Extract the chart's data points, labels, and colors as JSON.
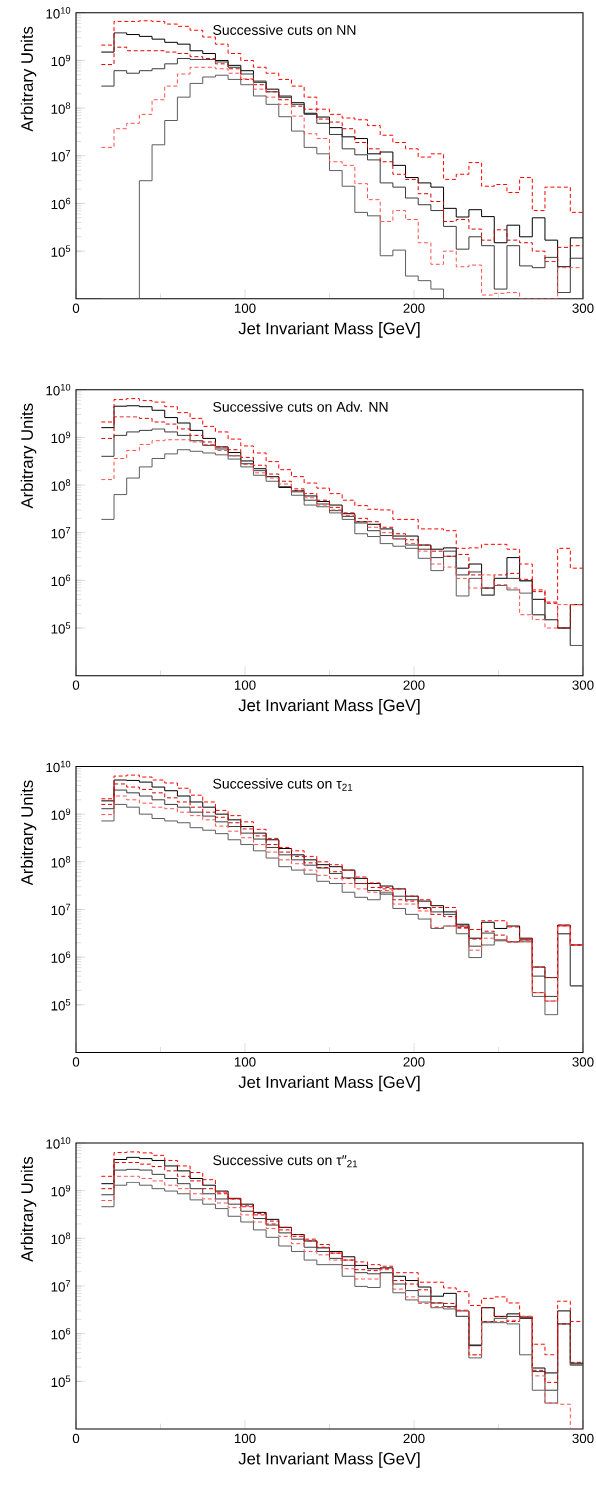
{
  "chart_data": [
    {
      "type": "histogram",
      "title": "Successive cuts on NN",
      "xlabel": "Jet Invariant Mass [GeV]",
      "ylabel": "Arbitrary Units",
      "log": "y",
      "xlim": [
        0,
        300
      ],
      "ylim": [
        10000,
        10000000000
      ],
      "xticks": [
        0,
        100,
        200,
        300
      ],
      "yticks": [
        {
          "value": 100000,
          "label": "10$^{5}$"
        },
        {
          "value": 1000000,
          "label": "10$^{6}$"
        },
        {
          "value": 10000000,
          "label": "10$^{7}$"
        },
        {
          "value": 100000000,
          "label": "10$^{8}$"
        },
        {
          "value": 1000000000,
          "label": "10$^{9}$"
        },
        {
          "value": 10000000000,
          "label": "10$^{10}$"
        }
      ],
      "bins": [
        15,
        22.5,
        30,
        37.5,
        45,
        52.5,
        60,
        67.5,
        75,
        82.5,
        90,
        97.5,
        105,
        112.5,
        120,
        127.5,
        135,
        142.5,
        150,
        157.5,
        165,
        172.5,
        180,
        187.5,
        195,
        202.5,
        210,
        217.5,
        225,
        232.5,
        240,
        247.5,
        255,
        262.5,
        270,
        277.5,
        285,
        292.5,
        300
      ],
      "series": [
        {
          "color": "#000000",
          "line_style": "solid",
          "values": [
            1500000000.0,
            3800000000.0,
            3500000000.0,
            3200000000.0,
            2800000000.0,
            2400000000.0,
            2200000000.0,
            1600000000.0,
            1400000000.0,
            1000000000.0,
            790000000.0,
            610000000.0,
            350000000.0,
            250000000.0,
            170000000.0,
            130000000.0,
            78000000.0,
            65000000.0,
            39000000.0,
            25000000.0,
            23000000.0,
            11000000.0,
            12000000.0,
            6300000.0,
            3500000.0,
            2700000.0,
            2200000.0,
            790000.0,
            520000.0,
            740000.0,
            530000.0,
            150000.0,
            350000.0,
            200000.0,
            500000.0,
            170000.0,
            47000.0,
            190000.0
          ]
        },
        {
          "color": "#3a3a3a",
          "line_style": "solid",
          "values": [
            290000000.0,
            610000000.0,
            540000000.0,
            610000000.0,
            670000000.0,
            850000000.0,
            1100000000.0,
            1050000000.0,
            1050000000.0,
            930000000.0,
            720000000.0,
            520000000.0,
            370000000.0,
            220000000.0,
            180000000.0,
            120000000.0,
            74000000.0,
            48000000.0,
            28000000.0,
            14000000.0,
            10500000.0,
            8200000.0,
            2700000.0,
            2200000.0,
            1300000.0,
            940000.0,
            710000.0,
            330000.0,
            110000.0,
            200000.0,
            130000.0,
            16000.0,
            130000.0,
            49000.0,
            45000.0,
            74000.0,
            13500.0,
            71000.0
          ]
        },
        {
          "color": "#5c5c5c",
          "line_style": "solid",
          "values": [
            null,
            null,
            null,
            3000000.0,
            17000000.0,
            55000000.0,
            170000000.0,
            330000000.0,
            450000000.0,
            490000000.0,
            400000000.0,
            310000000.0,
            180000000.0,
            120000000.0,
            66000000.0,
            33000000.0,
            15000000.0,
            11000000.0,
            4900000.0,
            2300000.0,
            650000.0,
            550000.0,
            80000.0,
            105000.0,
            30000.0,
            24000.0,
            16000.0,
            null,
            null,
            null,
            null,
            null,
            null,
            null,
            null,
            null,
            null,
            null
          ]
        },
        {
          "color": "#ff0000",
          "line_style": "dashed",
          "values": [
            2100000000.0,
            6600000000.0,
            6600000000.0,
            6800000000.0,
            6600000000.0,
            5800000000.0,
            5200000000.0,
            4300000000.0,
            3100000000.0,
            2200000000.0,
            1400000000.0,
            1000000000.0,
            720000000.0,
            540000000.0,
            400000000.0,
            290000000.0,
            170000000.0,
            95000000.0,
            74000000.0,
            62000000.0,
            57000000.0,
            43000000.0,
            27000000.0,
            19000000.0,
            14000000.0,
            9400000.0,
            11000000.0,
            3200000.0,
            4100000.0,
            7200000.0,
            2300000.0,
            2500000.0,
            1700000.0,
            3500000.0,
            710000.0,
            2200000.0,
            2200000.0,
            650000.0
          ]
        },
        {
          "color": "#d80000",
          "line_style": "dashed",
          "values": [
            820000000.0,
            1900000000.0,
            1600000000.0,
            1600000000.0,
            1600000000.0,
            1500000000.0,
            1400000000.0,
            1200000000.0,
            1100000000.0,
            850000000.0,
            670000000.0,
            400000000.0,
            310000000.0,
            220000000.0,
            150000000.0,
            110000000.0,
            95000000.0,
            59000000.0,
            51000000.0,
            37000000.0,
            19000000.0,
            14000000.0,
            7500000.0,
            4100000.0,
            3200000.0,
            1600000.0,
            1100000.0,
            420000.0,
            460000.0,
            290000.0,
            170000.0,
            280000.0,
            170000.0,
            150000.0,
            100000.0,
            60000.0,
            120000.0,
            130000.0
          ]
        },
        {
          "color": "#ff5050",
          "line_style": "dashed",
          "values": [
            15000000.0,
            37000000.0,
            48000000.0,
            74000000.0,
            150000000.0,
            290000000.0,
            520000000.0,
            720000000.0,
            720000000.0,
            670000000.0,
            540000000.0,
            410000000.0,
            250000000.0,
            170000000.0,
            120000000.0,
            68000000.0,
            29000000.0,
            23000000.0,
            7500000.0,
            6300000.0,
            2600000.0,
            1200000.0,
            420000.0,
            710000.0,
            460000.0,
            150000.0,
            53000.0,
            100000.0,
            47000.0,
            51000.0,
            12000.0,
            13000.0,
            13500.0,
            null,
            null,
            null,
            45000.0,
            45000.0
          ]
        }
      ]
    },
    {
      "type": "histogram",
      "title": "Successive cuts on Adv. NN",
      "xlabel": "Jet Invariant Mass [GeV]",
      "ylabel": "Arbitrary Units",
      "log": "y",
      "xlim": [
        0,
        300
      ],
      "ylim": [
        10000,
        10000000000
      ],
      "xticks": [
        0,
        100,
        200,
        300
      ],
      "yticks": [
        {
          "value": 100000,
          "label": "10$^{5}$"
        },
        {
          "value": 1000000,
          "label": "10$^{6}$"
        },
        {
          "value": 10000000,
          "label": "10$^{7}$"
        },
        {
          "value": 100000000,
          "label": "10$^{8}$"
        },
        {
          "value": 1000000000,
          "label": "10$^{9}$"
        },
        {
          "value": 10000000000,
          "label": "10$^{10}$"
        }
      ],
      "bins": [
        15,
        22.5,
        30,
        37.5,
        45,
        52.5,
        60,
        67.5,
        75,
        82.5,
        90,
        97.5,
        105,
        112.5,
        120,
        127.5,
        135,
        142.5,
        150,
        157.5,
        165,
        172.5,
        180,
        187.5,
        195,
        202.5,
        210,
        217.5,
        225,
        232.5,
        240,
        247.5,
        255,
        262.5,
        270,
        277.5,
        285,
        292.5,
        300
      ],
      "series": [
        {
          "color": "#000000",
          "line_style": "solid",
          "values": [
            1600000000.0,
            4500000000.0,
            4600000000.0,
            4400000000.0,
            3700000000.0,
            2600000000.0,
            2000000000.0,
            1400000000.0,
            950000000.0,
            630000000.0,
            480000000.0,
            320000000.0,
            220000000.0,
            150000000.0,
            89000000.0,
            76000000.0,
            59000000.0,
            45000000.0,
            38000000.0,
            25000000.0,
            17000000.0,
            15000000.0,
            12000000.0,
            8500000.0,
            8500000.0,
            5500000.0,
            4500000.0,
            4800000.0,
            1800000.0,
            2200000.0,
            690000.0,
            1100000.0,
            3000000.0,
            980000.0,
            400000.0,
            150000.0,
            100000.0,
            310000.0
          ]
        },
        {
          "color": "#3a3a3a",
          "line_style": "solid",
          "values": [
            400000000.0,
            1100000000.0,
            1300000000.0,
            1400000000.0,
            1500000000.0,
            1300000000.0,
            1100000000.0,
            850000000.0,
            680000000.0,
            570000000.0,
            410000000.0,
            280000000.0,
            200000000.0,
            150000000.0,
            93000000.0,
            72000000.0,
            48000000.0,
            40000000.0,
            29000000.0,
            22000000.0,
            16000000.0,
            11000000.0,
            8700000.0,
            7400000.0,
            5500000.0,
            4500000.0,
            3000000.0,
            4100000.0,
            1300000.0,
            1500000.0,
            490000.0,
            1100000.0,
            1100000.0,
            980000.0,
            190000.0,
            150000.0,
            100000.0,
            43000.0
          ]
        },
        {
          "color": "#5c5c5c",
          "line_style": "solid",
          "values": [
            19000000.0,
            63000000.0,
            140000000.0,
            240000000.0,
            360000000.0,
            450000000.0,
            550000000.0,
            510000000.0,
            470000000.0,
            430000000.0,
            350000000.0,
            240000000.0,
            160000000.0,
            120000000.0,
            93000000.0,
            61000000.0,
            38000000.0,
            35000000.0,
            26000000.0,
            19000000.0,
            9500000.0,
            8300000.0,
            5900000.0,
            5200000.0,
            4700000.0,
            2900000.0,
            1600000.0,
            3200000.0,
            470000.0,
            1100000.0,
            490000.0,
            780000.0,
            630000.0,
            540000.0,
            190000.0,
            150000.0,
            100000.0,
            43000.0
          ]
        },
        {
          "color": "#ff0000",
          "line_style": "dashed",
          "values": [
            2100000000.0,
            6200000000.0,
            6500000000.0,
            5900000000.0,
            5500000000.0,
            4400000000.0,
            3300000000.0,
            2500000000.0,
            1700000000.0,
            1300000000.0,
            920000000.0,
            660000000.0,
            470000000.0,
            310000000.0,
            210000000.0,
            150000000.0,
            110000000.0,
            86000000.0,
            66000000.0,
            48000000.0,
            37000000.0,
            31000000.0,
            30000000.0,
            19000000.0,
            19000000.0,
            12000000.0,
            12000000.0,
            11000000.0,
            4700000.0,
            4800000.0,
            5700000.0,
            5700000.0,
            4500000.0,
            2200000.0,
            630000.0,
            350000.0,
            4700000.0,
            1800000.0
          ]
        },
        {
          "color": "#d80000",
          "line_style": "dashed",
          "values": [
            950000000.0,
            2700000000.0,
            2700000000.0,
            2500000000.0,
            2100000000.0,
            1900000000.0,
            1500000000.0,
            1100000000.0,
            800000000.0,
            630000000.0,
            550000000.0,
            380000000.0,
            260000000.0,
            170000000.0,
            120000000.0,
            83000000.0,
            66000000.0,
            48000000.0,
            34000000.0,
            26000000.0,
            20000000.0,
            17000000.0,
            13000000.0,
            9500000.0,
            7100000.0,
            5500000.0,
            4100000.0,
            3200000.0,
            3500000.0,
            1300000.0,
            690000.0,
            1300000.0,
            1400000.0,
            1050000.0,
            580000.0,
            330000.0,
            100000.0,
            310000.0
          ]
        },
        {
          "color": "#ff5050",
          "line_style": "dashed",
          "values": [
            130000000.0,
            360000000.0,
            530000000.0,
            710000000.0,
            850000000.0,
            890000000.0,
            890000000.0,
            800000000.0,
            710000000.0,
            530000000.0,
            410000000.0,
            270000000.0,
            180000000.0,
            140000000.0,
            105000000.0,
            76000000.0,
            54000000.0,
            38000000.0,
            30000000.0,
            23000000.0,
            17000000.0,
            13000000.0,
            10000000.0,
            7400000.0,
            5900000.0,
            4100000.0,
            2200000.0,
            1900000.0,
            1100000.0,
            690000.0,
            1300000.0,
            810000.0,
            690000.0,
            190000.0,
            150000.0,
            100000.0,
            310000.0,
            310000.0
          ]
        }
      ]
    },
    {
      "type": "histogram",
      "title": "Successive cuts on τ$_{21}$",
      "xlabel": "Jet Invariant Mass [GeV]",
      "ylabel": "Arbitrary Units",
      "log": "y",
      "xlim": [
        0,
        300
      ],
      "ylim": [
        10000,
        10000000000
      ],
      "xticks": [
        0,
        100,
        200,
        300
      ],
      "yticks": [
        {
          "value": 100000,
          "label": "10$^{5}$"
        },
        {
          "value": 1000000,
          "label": "10$^{6}$"
        },
        {
          "value": 10000000,
          "label": "10$^{7}$"
        },
        {
          "value": 100000000,
          "label": "10$^{8}$"
        },
        {
          "value": 1000000000,
          "label": "10$^{9}$"
        },
        {
          "value": 10000000000,
          "label": "10$^{10}$"
        }
      ],
      "bins": [
        15,
        22.5,
        30,
        37.5,
        45,
        52.5,
        60,
        67.5,
        75,
        82.5,
        90,
        97.5,
        105,
        112.5,
        120,
        127.5,
        135,
        142.5,
        150,
        157.5,
        165,
        172.5,
        180,
        187.5,
        195,
        202.5,
        210,
        217.5,
        225,
        232.5,
        240,
        247.5,
        255,
        262.5,
        270,
        277.5,
        285,
        292.5,
        300
      ],
      "series": [
        {
          "color": "#000000",
          "line_style": "solid",
          "values": [
            1900000000.0,
            5200000000.0,
            5100000000.0,
            4700000000.0,
            3700000000.0,
            3100000000.0,
            2400000000.0,
            1800000000.0,
            1400000000.0,
            1000000000.0,
            760000000.0,
            550000000.0,
            400000000.0,
            290000000.0,
            190000000.0,
            140000000.0,
            110000000.0,
            87000000.0,
            79000000.0,
            67000000.0,
            45000000.0,
            35000000.0,
            31000000.0,
            27000000.0,
            19000000.0,
            15000000.0,
            12000000.0,
            8900000.0,
            4900000.0,
            2500000.0,
            5400000.0,
            4000000.0,
            4500000.0,
            2500000.0,
            620000.0,
            370000.0,
            4700000.0,
            1800000.0
          ]
        },
        {
          "color": "#3a3a3a",
          "line_style": "solid",
          "values": [
            1300000000.0,
            3200000000.0,
            2800000000.0,
            2400000000.0,
            2000000000.0,
            1600000000.0,
            1400000000.0,
            1100000000.0,
            910000000.0,
            690000000.0,
            550000000.0,
            400000000.0,
            300000000.0,
            200000000.0,
            140000000.0,
            110000000.0,
            85000000.0,
            74000000.0,
            57000000.0,
            46000000.0,
            35000000.0,
            25000000.0,
            21000000.0,
            19000000.0,
            16000000.0,
            11000000.0,
            8900000.0,
            7900000.0,
            4500000.0,
            1700000.0,
            3200000.0,
            2300000.0,
            2100000.0,
            2300000.0,
            400000.0,
            150000.0,
            3100000.0,
            250000.0
          ]
        },
        {
          "color": "#5c5c5c",
          "line_style": "solid",
          "values": [
            720000000.0,
            1600000000.0,
            1400000000.0,
            1000000000.0,
            810000000.0,
            720000000.0,
            660000000.0,
            520000000.0,
            460000000.0,
            390000000.0,
            290000000.0,
            230000000.0,
            170000000.0,
            120000000.0,
            79000000.0,
            67000000.0,
            55000000.0,
            39000000.0,
            35000000.0,
            23000000.0,
            18000000.0,
            16000000.0,
            23000000.0,
            10500000.0,
            7900000.0,
            6300000.0,
            4000000.0,
            4500000.0,
            3100000.0,
            980000.0,
            1800000.0,
            2200000.0,
            2100000.0,
            2100000.0,
            150000.0,
            62000.0,
            3100000.0,
            250000.0
          ]
        },
        {
          "color": "#ff0000",
          "line_style": "dashed",
          "values": [
            2100000000.0,
            6300000000.0,
            6600000000.0,
            6000000000.0,
            5200000000.0,
            4500000000.0,
            3500000000.0,
            2500000000.0,
            1800000000.0,
            1200000000.0,
            930000000.0,
            690000000.0,
            480000000.0,
            310000000.0,
            200000000.0,
            170000000.0,
            130000000.0,
            100000000.0,
            87000000.0,
            67000000.0,
            48000000.0,
            36000000.0,
            29000000.0,
            27000000.0,
            19000000.0,
            16000000.0,
            11000000.0,
            11000000.0,
            4500000.0,
            3800000.0,
            5800000.0,
            5800000.0,
            4300000.0,
            2400000.0,
            620000.0,
            370000.0,
            4700000.0,
            1800000.0
          ]
        },
        {
          "color": "#d80000",
          "line_style": "dashed",
          "values": [
            1600000000.0,
            4300000000.0,
            3700000000.0,
            3300000000.0,
            2800000000.0,
            2200000000.0,
            1800000000.0,
            1400000000.0,
            1100000000.0,
            860000000.0,
            660000000.0,
            490000000.0,
            350000000.0,
            230000000.0,
            160000000.0,
            130000000.0,
            95000000.0,
            76000000.0,
            62000000.0,
            45000000.0,
            35000000.0,
            29000000.0,
            27000000.0,
            16000000.0,
            15000000.0,
            10500000.0,
            7900000.0,
            7100000.0,
            4200000.0,
            2400000.0,
            3500000.0,
            2900000.0,
            2100000.0,
            2300000.0,
            180000.0,
            120000.0,
            4500000.0,
            1800000.0
          ]
        },
        {
          "color": "#ff5050",
          "line_style": "dashed",
          "values": [
            980000000.0,
            2400000000.0,
            2000000000.0,
            1700000000.0,
            1400000000.0,
            1300000000.0,
            1100000000.0,
            930000000.0,
            760000000.0,
            560000000.0,
            440000000.0,
            320000000.0,
            230000000.0,
            160000000.0,
            110000000.0,
            91000000.0,
            67000000.0,
            52000000.0,
            45000000.0,
            35000000.0,
            27000000.0,
            23000000.0,
            25000000.0,
            13000000.0,
            13000000.0,
            9300000.0,
            4200000.0,
            4500000.0,
            4000000.0,
            1400000.0,
            2500000.0,
            2300000.0,
            2100000.0,
            2100000.0,
            180000.0,
            120000.0,
            4500000.0,
            1800000.0
          ]
        }
      ]
    },
    {
      "type": "histogram",
      "title": "Successive cuts on τ″$_{21}$",
      "xlabel": "Jet Invariant Mass [GeV]",
      "ylabel": "Arbitrary Units",
      "log": "y",
      "xlim": [
        0,
        300
      ],
      "ylim": [
        10000,
        10000000000
      ],
      "xticks": [
        0,
        100,
        200,
        300
      ],
      "yticks": [
        {
          "value": 100000,
          "label": "10$^{5}$"
        },
        {
          "value": 1000000,
          "label": "10$^{6}$"
        },
        {
          "value": 10000000,
          "label": "10$^{7}$"
        },
        {
          "value": 100000000,
          "label": "10$^{8}$"
        },
        {
          "value": 1000000000,
          "label": "10$^{9}$"
        },
        {
          "value": 10000000000,
          "label": "10$^{10}$"
        }
      ],
      "bins": [
        15,
        22.5,
        30,
        37.5,
        45,
        52.5,
        60,
        67.5,
        75,
        82.5,
        90,
        97.5,
        105,
        112.5,
        120,
        127.5,
        135,
        142.5,
        150,
        157.5,
        165,
        172.5,
        180,
        187.5,
        195,
        202.5,
        210,
        217.5,
        225,
        232.5,
        240,
        247.5,
        255,
        262.5,
        270,
        277.5,
        285,
        292.5,
        300
      ],
      "series": [
        {
          "color": "#000000",
          "line_style": "solid",
          "values": [
            1400000000.0,
            4500000000.0,
            5000000000.0,
            4700000000.0,
            4300000000.0,
            3300000000.0,
            2600000000.0,
            1800000000.0,
            1300000000.0,
            980000000.0,
            690000000.0,
            520000000.0,
            350000000.0,
            250000000.0,
            170000000.0,
            120000000.0,
            88000000.0,
            63000000.0,
            53000000.0,
            41000000.0,
            27000000.0,
            23000000.0,
            24000000.0,
            16000000.0,
            13000000.0,
            9500000.0,
            6100000.0,
            7000000.0,
            2300000.0,
            560000.0,
            3500000.0,
            2300000.0,
            2600000.0,
            2100000.0,
            190000.0,
            150000.0,
            3000000.0,
            240000.0
          ]
        },
        {
          "color": "#3a3a3a",
          "line_style": "solid",
          "values": [
            820000000.0,
            2700000000.0,
            2800000000.0,
            2700000000.0,
            2200000000.0,
            1800000000.0,
            1400000000.0,
            1100000000.0,
            860000000.0,
            670000000.0,
            520000000.0,
            370000000.0,
            260000000.0,
            190000000.0,
            130000000.0,
            96000000.0,
            65000000.0,
            53000000.0,
            38000000.0,
            27000000.0,
            19000000.0,
            18000000.0,
            19000000.0,
            11000000.0,
            8000000.0,
            6100000.0,
            4400000.0,
            3700000.0,
            3000000.0,
            580000.0,
            1800000.0,
            2100000.0,
            2300000.0,
            2200000.0,
            160000.0,
            65000.0,
            1600000.0,
            220000.0
          ]
        },
        {
          "color": "#5c5c5c",
          "line_style": "solid",
          "values": [
            460000000.0,
            1300000000.0,
            1500000000.0,
            1300000000.0,
            1100000000.0,
            980000000.0,
            860000000.0,
            640000000.0,
            520000000.0,
            420000000.0,
            290000000.0,
            220000000.0,
            150000000.0,
            105000000.0,
            69000000.0,
            53000000.0,
            35000000.0,
            28000000.0,
            28000000.0,
            16000000.0,
            9800000.0,
            9300000.0,
            19000000.0,
            7200000.0,
            5100000.0,
            4600000.0,
            3500000.0,
            3300000.0,
            2300000.0,
            310000.0,
            1700000.0,
            1700000.0,
            1600000.0,
            360000.0,
            65000.0,
            35000.0,
            1600000.0,
            220000.0
          ]
        },
        {
          "color": "#ff0000",
          "line_style": "dashed",
          "values": [
            2000000000.0,
            6300000000.0,
            6500000000.0,
            6200000000.0,
            5500000000.0,
            4300000000.0,
            3300000000.0,
            2400000000.0,
            1700000000.0,
            930000000.0,
            670000000.0,
            460000000.0,
            310000000.0,
            200000000.0,
            150000000.0,
            110000000.0,
            88000000.0,
            65000000.0,
            49000000.0,
            35000000.0,
            32000000.0,
            28000000.0,
            26000000.0,
            19000000.0,
            19000000.0,
            12000000.0,
            12000000.0,
            9100000.0,
            7600000.0,
            3900000.0,
            5500000.0,
            5900000.0,
            4400000.0,
            2300000.0,
            600000.0,
            360000.0,
            4800000.0,
            1800000.0
          ]
        },
        {
          "color": "#d80000",
          "line_style": "dashed",
          "values": [
            1100000000.0,
            3900000000.0,
            3900000000.0,
            3600000000.0,
            3200000000.0,
            2600000000.0,
            2000000000.0,
            1600000000.0,
            1100000000.0,
            860000000.0,
            670000000.0,
            480000000.0,
            330000000.0,
            230000000.0,
            170000000.0,
            120000000.0,
            96000000.0,
            74000000.0,
            49000000.0,
            35000000.0,
            22000000.0,
            21000000.0,
            23000000.0,
            13000000.0,
            11000000.0,
            8300000.0,
            4400000.0,
            4300000.0,
            3100000.0,
            360000.0,
            3500000.0,
            2300000.0,
            1800000.0,
            2300000.0,
            170000.0,
            95000.0,
            1600000.0,
            250000.0
          ]
        },
        {
          "color": "#ff5050",
          "line_style": "dashed",
          "values": [
            620000000.0,
            2000000000.0,
            2000000000.0,
            1800000000.0,
            1600000000.0,
            1300000000.0,
            1100000000.0,
            860000000.0,
            670000000.0,
            550000000.0,
            440000000.0,
            310000000.0,
            220000000.0,
            160000000.0,
            110000000.0,
            77000000.0,
            53000000.0,
            45000000.0,
            35000000.0,
            23000000.0,
            14000000.0,
            14000000.0,
            22000000.0,
            8600000.0,
            5900000.0,
            4300000.0,
            3700000.0,
            3500000.0,
            3000000.0,
            360000.0,
            1800000.0,
            1800000.0,
            1900000.0,
            2300000.0,
            130000.0,
            35000.0,
            33000.0,
            null
          ]
        }
      ]
    }
  ]
}
